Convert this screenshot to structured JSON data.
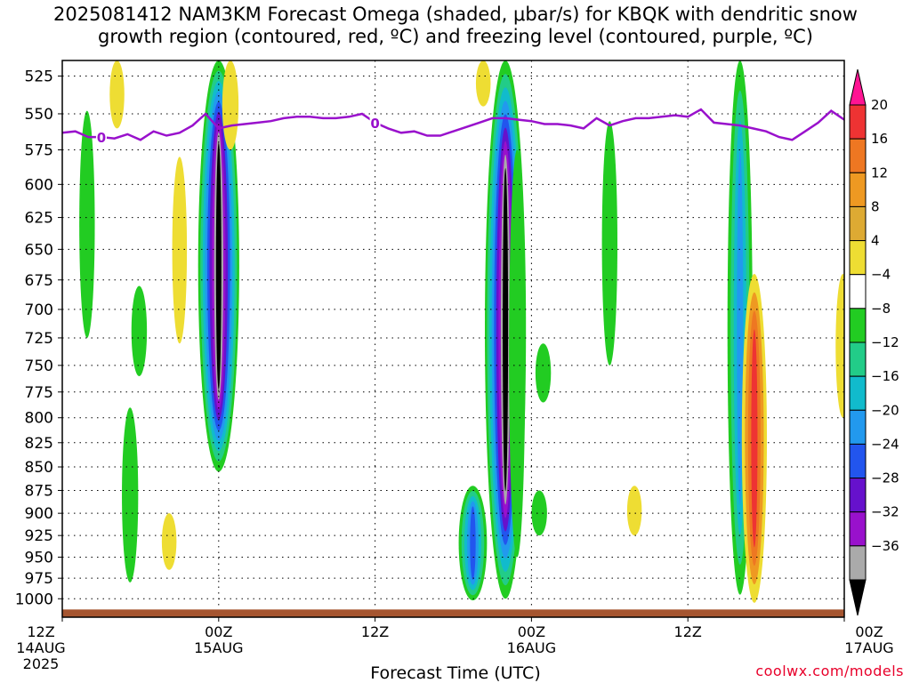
{
  "chart_data": {
    "type": "heatmap",
    "title_line1": "2025081412 NAM3KM Forecast Omega (shaded, μbar/s) for KBQK with dendritic snow",
    "title_line2": "growth region (contoured, red, ºC) and freezing level (contoured, purple, ºC)",
    "xlabel": "Forecast Time (UTC)",
    "ylabel": "",
    "credit": "coolwx.com/models",
    "y_axis": {
      "ticks": [
        525,
        550,
        575,
        600,
        625,
        650,
        675,
        700,
        725,
        750,
        775,
        800,
        825,
        850,
        875,
        900,
        925,
        950,
        975,
        1000
      ],
      "range": [
        515,
        1023
      ],
      "scale": "log-pressure",
      "grid": true
    },
    "x_axis": {
      "range_hours": [
        0,
        60
      ],
      "ticks": [
        {
          "hour": 0,
          "labels": [
            "12Z",
            "14AUG",
            "2025"
          ]
        },
        {
          "hour": 12,
          "labels": [
            "00Z",
            "15AUG"
          ]
        },
        {
          "hour": 24,
          "labels": [
            "12Z"
          ]
        },
        {
          "hour": 36,
          "labels": [
            "00Z",
            "16AUG"
          ]
        },
        {
          "hour": 48,
          "labels": [
            "12Z"
          ]
        },
        {
          "hour": 60,
          "labels": [
            "00Z",
            "17AUG"
          ]
        }
      ],
      "grid": true
    },
    "colorbar": {
      "labels": [
        "20",
        "16",
        "12",
        "8",
        "4",
        "−4",
        "−8",
        "−12",
        "−16",
        "−20",
        "−24",
        "−28",
        "−32",
        "−36"
      ],
      "colors": [
        "#ff1493",
        "#ee3333",
        "#ee7722",
        "#ee9922",
        "#ddaa33",
        "#eedd33",
        "#ffffff",
        "#22cc22",
        "#22cc88",
        "#11bbcc",
        "#2299ee",
        "#2255ee",
        "#6611cc",
        "#9911cc",
        "#aaaaaa",
        "#000000"
      ]
    },
    "freezing_level": {
      "color": "#9911cc",
      "label": "0",
      "hours": [
        0,
        1,
        2,
        3,
        4,
        5,
        6,
        7,
        8,
        9,
        10,
        11,
        12,
        13,
        14,
        15,
        16,
        17,
        18,
        19,
        20,
        21,
        22,
        23,
        24,
        25,
        26,
        27,
        28,
        29,
        30,
        31,
        32,
        33,
        34,
        35,
        36,
        37,
        38,
        39,
        40,
        41,
        42,
        43,
        44,
        45,
        46,
        47,
        48,
        49,
        50,
        51,
        52,
        53,
        54,
        55,
        56,
        57,
        58,
        59,
        60
      ],
      "pressure": [
        563,
        562,
        566,
        566,
        567,
        564,
        568,
        562,
        565,
        563,
        558,
        550,
        560,
        558,
        557,
        556,
        555,
        553,
        552,
        552,
        553,
        553,
        552,
        550,
        556,
        560,
        563,
        562,
        565,
        565,
        562,
        559,
        556,
        553,
        553,
        554,
        555,
        557,
        557,
        558,
        560,
        553,
        558,
        555,
        553,
        553,
        552,
        551,
        552,
        547,
        556,
        557,
        558,
        560,
        562,
        566,
        568,
        562,
        556,
        548,
        554
      ]
    },
    "surface_color": "#a55530",
    "omega_regions": [
      {
        "hour": 12.0,
        "p_top": 515,
        "p_bot": 855,
        "value": -38
      },
      {
        "hour": 12.9,
        "p_top": 515,
        "p_bot": 575,
        "value": 7
      },
      {
        "hour": 9.0,
        "p_top": 580,
        "p_bot": 730,
        "value": 5
      },
      {
        "hour": 1.9,
        "p_top": 548,
        "p_bot": 725,
        "value": -6
      },
      {
        "hour": 5.9,
        "p_top": 680,
        "p_bot": 760,
        "value": -6
      },
      {
        "hour": 5.2,
        "p_top": 790,
        "p_bot": 980,
        "value": -7
      },
      {
        "hour": 8.2,
        "p_top": 900,
        "p_bot": 965,
        "value": 5
      },
      {
        "hour": 4.2,
        "p_top": 515,
        "p_bot": 560,
        "value": 5
      },
      {
        "hour": 34.0,
        "p_top": 515,
        "p_bot": 1000,
        "value": -38
      },
      {
        "hour": 31.5,
        "p_top": 870,
        "p_bot": 1002,
        "value": -22
      },
      {
        "hour": 34.9,
        "p_top": 575,
        "p_bot": 950,
        "value": -7
      },
      {
        "hour": 32.3,
        "p_top": 515,
        "p_bot": 545,
        "value": 5
      },
      {
        "hour": 36.9,
        "p_top": 730,
        "p_bot": 785,
        "value": -6
      },
      {
        "hour": 36.6,
        "p_top": 875,
        "p_bot": 925,
        "value": -6
      },
      {
        "hour": 42.0,
        "p_top": 555,
        "p_bot": 750,
        "value": -6
      },
      {
        "hour": 43.9,
        "p_top": 870,
        "p_bot": 925,
        "value": 5
      },
      {
        "hour": 52.0,
        "p_top": 515,
        "p_bot": 995,
        "value": -18
      },
      {
        "hour": 53.1,
        "p_top": 670,
        "p_bot": 1005,
        "value": 18
      },
      {
        "hour": 59.9,
        "p_top": 670,
        "p_bot": 800,
        "value": 5
      }
    ]
  }
}
